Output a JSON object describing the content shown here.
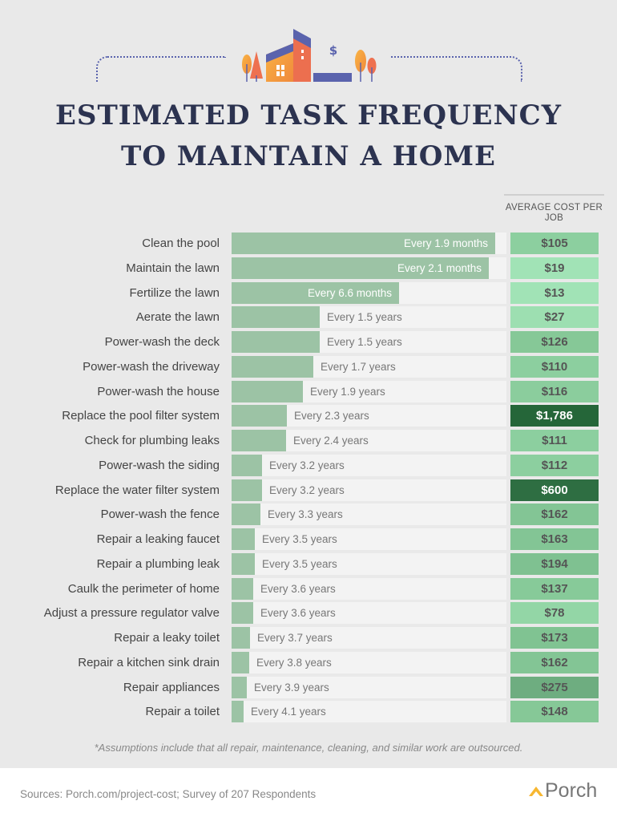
{
  "title_line1": "ESTIMATED TASK FREQUENCY",
  "title_line2": "TO MAINTAIN A HOME",
  "house_sign": "$",
  "chart_data": {
    "type": "bar",
    "orientation": "horizontal",
    "title": "Estimated Task Frequency to Maintain a Home",
    "value_column_header": "AVERAGE COST PER JOB",
    "rows": [
      {
        "task": "Clean the pool",
        "frequency": "Every 1.9 months",
        "bar": 0.96,
        "cost": "$105",
        "color": "#8ccf9f",
        "text": "#555"
      },
      {
        "task": "Maintain the lawn",
        "frequency": "Every 2.1 months",
        "bar": 0.935,
        "cost": "$19",
        "color": "#a1e3b6",
        "text": "#555"
      },
      {
        "task": "Fertilize the lawn",
        "frequency": "Every 6.6 months",
        "bar": 0.61,
        "cost": "$13",
        "color": "#a1e3b6",
        "text": "#555"
      },
      {
        "task": "Aerate the lawn",
        "frequency": "Every 1.5 years",
        "bar": 0.32,
        "cost": "$27",
        "color": "#9ddfb1",
        "text": "#555"
      },
      {
        "task": "Power-wash the deck",
        "frequency": "Every 1.5 years",
        "bar": 0.32,
        "cost": "$126",
        "color": "#86c897",
        "text": "#555"
      },
      {
        "task": "Power-wash the driveway",
        "frequency": "Every 1.7 years",
        "bar": 0.298,
        "cost": "$110",
        "color": "#8ccf9f",
        "text": "#555"
      },
      {
        "task": "Power-wash the house",
        "frequency": "Every 1.9 years",
        "bar": 0.26,
        "cost": "$116",
        "color": "#8bcd9d",
        "text": "#555"
      },
      {
        "task": "Replace the pool filter system",
        "frequency": "Every 2.3 years",
        "bar": 0.2,
        "cost": "$1,786",
        "color": "#256639",
        "text": "#fff"
      },
      {
        "task": "Check for plumbing leaks",
        "frequency": "Every 2.4 years",
        "bar": 0.198,
        "cost": "$111",
        "color": "#8ccf9f",
        "text": "#555"
      },
      {
        "task": "Power-wash the siding",
        "frequency": "Every 3.2 years",
        "bar": 0.11,
        "cost": "$112",
        "color": "#8ccf9f",
        "text": "#555"
      },
      {
        "task": "Replace the water filter system",
        "frequency": "Every 3.2 years",
        "bar": 0.11,
        "cost": "$600",
        "color": "#2e6e42",
        "text": "#fff"
      },
      {
        "task": "Power-wash the fence",
        "frequency": "Every 3.3 years",
        "bar": 0.105,
        "cost": "$162",
        "color": "#83c595",
        "text": "#555"
      },
      {
        "task": "Repair a leaking faucet",
        "frequency": "Every 3.5 years",
        "bar": 0.085,
        "cost": "$163",
        "color": "#83c595",
        "text": "#555"
      },
      {
        "task": "Repair a plumbing leak",
        "frequency": "Every 3.5 years",
        "bar": 0.085,
        "cost": "$194",
        "color": "#7fc191",
        "text": "#555"
      },
      {
        "task": "Caulk the perimeter of home",
        "frequency": "Every 3.6 years",
        "bar": 0.08,
        "cost": "$137",
        "color": "#87ca99",
        "text": "#555"
      },
      {
        "task": "Adjust a pressure regulator valve",
        "frequency": "Every 3.6 years",
        "bar": 0.08,
        "cost": "$78",
        "color": "#93d6a6",
        "text": "#555"
      },
      {
        "task": "Repair a leaky toilet",
        "frequency": "Every 3.7 years",
        "bar": 0.068,
        "cost": "$173",
        "color": "#80c392",
        "text": "#555"
      },
      {
        "task": "Repair a kitchen sink drain",
        "frequency": "Every 3.8 years",
        "bar": 0.065,
        "cost": "$162",
        "color": "#83c595",
        "text": "#555"
      },
      {
        "task": "Repair appliances",
        "frequency": "Every 3.9 years",
        "bar": 0.055,
        "cost": "$275",
        "color": "#6ead80",
        "text": "#555"
      },
      {
        "task": "Repair a toilet",
        "frequency": "Every 4.1 years",
        "bar": 0.045,
        "cost": "$148",
        "color": "#86c897",
        "text": "#555"
      }
    ]
  },
  "footnote": "*Assumptions include that all repair, maintenance, cleaning, and similar work are outsourced.",
  "sources": "Sources: Porch.com/project-cost; Survey of 207 Respondents",
  "logo_text": "Porch"
}
